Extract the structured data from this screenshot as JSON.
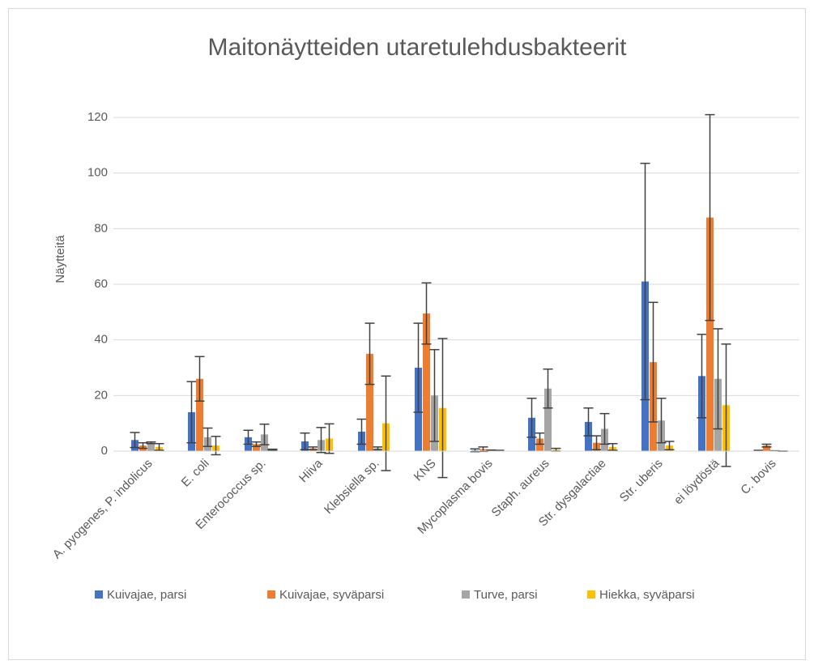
{
  "chart_data": {
    "type": "bar",
    "title": "Maitonäytteiden utaretulehdusbakteerit",
    "y_label": "Näytteitä",
    "categories": [
      "A. pyogenes, P. indolicus",
      "E. coli",
      "Enterococcus sp.",
      "Hiiva",
      "Klebsiella sp.",
      "KNS",
      "Mycoplasma bovis",
      "Staph. aureus",
      "Str. dysgalactiae",
      "Str. uberis",
      "ei löydöstä",
      "C. bovis"
    ],
    "series": [
      {
        "name": "Kuivajae, parsi",
        "color": "#4472c4",
        "values": [
          4,
          14,
          5,
          3.5,
          7,
          30,
          0.3,
          12,
          10.5,
          61,
          27,
          0.2
        ],
        "errors": [
          2.7,
          11,
          2.5,
          3,
          4.5,
          16,
          0.5,
          7,
          5,
          42.5,
          15,
          0.1
        ]
      },
      {
        "name": "Kuivajae, syväparsi",
        "color": "#ed7d31",
        "values": [
          2,
          26,
          2.5,
          1,
          35,
          49.5,
          0.7,
          4.5,
          3,
          32,
          84,
          2
        ],
        "errors": [
          1,
          8,
          0.8,
          0.5,
          11,
          11,
          0.8,
          2,
          2.5,
          21.5,
          37,
          0.5
        ]
      },
      {
        "name": "Turve, parsi",
        "color": "#a5a5a5",
        "values": [
          3,
          5,
          6,
          4,
          1,
          20,
          0.3,
          22.5,
          8,
          11,
          26,
          0.1
        ],
        "errors": [
          0.3,
          3.3,
          3.7,
          4.5,
          0.5,
          16.5,
          0.1,
          7,
          5.5,
          8,
          18,
          0
        ],
        "color_note": null
      },
      {
        "name": "Hiekka, syväparsi",
        "color": "#ffc000",
        "values": [
          1.5,
          2,
          0.5,
          4.5,
          10,
          15.5,
          0.2,
          0.5,
          1.5,
          2,
          16.5,
          0
        ],
        "errors": [
          1.2,
          3.3,
          0.2,
          5.3,
          17,
          25,
          0.1,
          0.5,
          1.2,
          1.5,
          22,
          0
        ]
      }
    ],
    "ylim": [
      0,
      120
    ],
    "yticks": [
      0,
      20,
      40,
      60,
      80,
      100,
      120
    ],
    "grid": true,
    "legend": "bottom"
  }
}
